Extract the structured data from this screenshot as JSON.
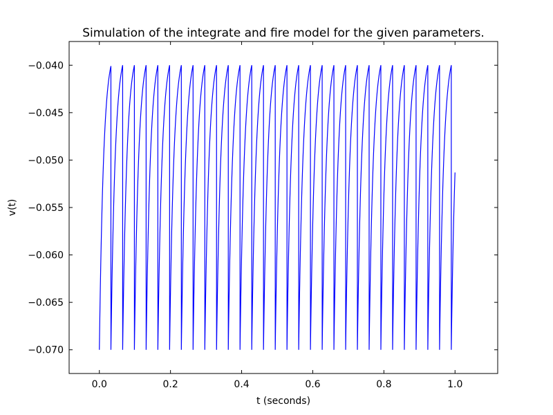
{
  "chart_data": {
    "type": "line",
    "title": "Simulation of the integrate and fire model for the given parameters.",
    "xlabel": "t (seconds)",
    "ylabel": "v(t)",
    "xlim": [
      -0.085,
      1.12
    ],
    "ylim": [
      -0.0725,
      -0.0375
    ],
    "x_ticks": [
      0.0,
      0.2,
      0.4,
      0.6,
      0.8,
      1.0
    ],
    "x_tick_labels": [
      "0.0",
      "0.2",
      "0.4",
      "0.6",
      "0.8",
      "1.0"
    ],
    "y_ticks": [
      -0.07,
      -0.065,
      -0.06,
      -0.055,
      -0.05,
      -0.045,
      -0.04
    ],
    "y_tick_labels": [
      "−0.070",
      "−0.065",
      "−0.060",
      "−0.055",
      "−0.050",
      "−0.045",
      "−0.040"
    ],
    "grid": false,
    "legend": "none",
    "series": [
      {
        "color": "#0000ff",
        "v_reset": -0.07,
        "v_threshold": -0.04,
        "v_final": -0.0498,
        "t_start": 0.0,
        "t_end": 1.0,
        "spike_times": [
          0.0325,
          0.0655,
          0.0985,
          0.1315,
          0.1645,
          0.1975,
          0.2305,
          0.2635,
          0.2965,
          0.3295,
          0.3625,
          0.3955,
          0.4285,
          0.4615,
          0.4945,
          0.5275,
          0.5605,
          0.5935,
          0.6265,
          0.6595,
          0.6925,
          0.7255,
          0.7585,
          0.7915,
          0.8245,
          0.8575,
          0.8905,
          0.9235,
          0.9565,
          0.9895
        ]
      }
    ]
  }
}
